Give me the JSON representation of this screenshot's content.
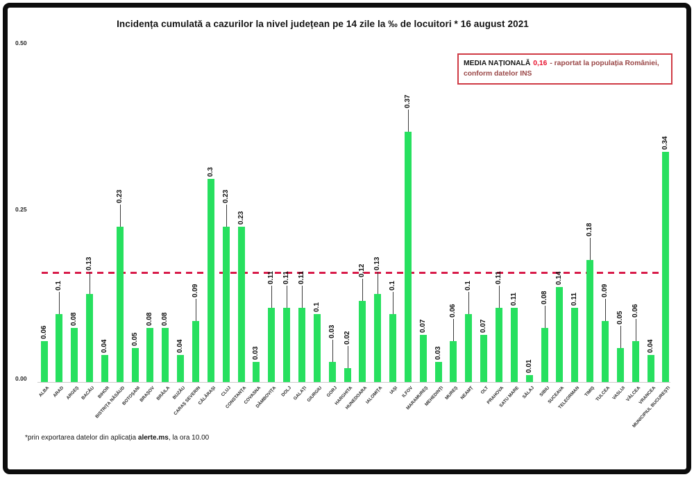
{
  "title": "Incidența cumulată a cazurilor la nivel județean pe 14 zile la ‰ de locuitori *  16 august 2021",
  "annotation_box": {
    "label": "MEDIA NAȚIONALĂ",
    "value": "0,16",
    "rest_line1": "- raportat la populația României,",
    "line2": "conform datelor INS"
  },
  "footnote": {
    "pre": "*prin exportarea datelor din aplicația ",
    "bold": "alerte.ms",
    "post": ", la ora 10.00"
  },
  "chart_data": {
    "type": "bar",
    "title": "Incidența cumulată a cazurilor la nivel județean pe 14 zile la ‰ de locuitori *  16 august 2021",
    "xlabel": "",
    "ylabel": "",
    "ylim": [
      0,
      0.5
    ],
    "ytick_labels": [
      "0.50",
      "0.25",
      "0.00"
    ],
    "ytick_values": [
      0.5,
      0.25,
      0.0
    ],
    "grid": false,
    "legend": false,
    "bar_color": "#27e05f",
    "avg_line_color": "#d81b4a",
    "national_average": 0.16,
    "national_average_label": "0,16",
    "categories": [
      "ALBA",
      "ARAD",
      "ARGEȘ",
      "BACĂU",
      "BIHOR",
      "BISTRIȚA NĂSĂUD",
      "BOTOȘANI",
      "BRAȘOV",
      "BRĂILA",
      "BUZĂU",
      "CARAȘ SEVERIN",
      "CĂLĂRAȘI",
      "CLUJ",
      "CONSTANȚA",
      "COVASNA",
      "DÂMBOVIȚA",
      "DOLJ",
      "GALAȚI",
      "GIURGIU",
      "GORJ",
      "HARGHITA",
      "HUNEDOARA",
      "IALOMIȚA",
      "IAȘI",
      "ILFOV",
      "MARAMUREȘ",
      "MEHEDINȚI",
      "MUREȘ",
      "NEAMȚ",
      "OLT",
      "PRAHOVA",
      "SATU MARE",
      "SĂLAJ",
      "SIBIU",
      "SUCEAVA",
      "TELEORMAN",
      "TIMIȘ",
      "TULCEA",
      "VASLUI",
      "VÂLCEA",
      "VRANCEA",
      "MUNICIPIUL BUCUREȘTI"
    ],
    "values": [
      0.06,
      0.1,
      0.08,
      0.13,
      0.04,
      0.23,
      0.05,
      0.08,
      0.08,
      0.04,
      0.09,
      0.3,
      0.23,
      0.23,
      0.03,
      0.11,
      0.11,
      0.11,
      0.1,
      0.03,
      0.02,
      0.12,
      0.13,
      0.1,
      0.37,
      0.07,
      0.03,
      0.06,
      0.1,
      0.07,
      0.11,
      0.11,
      0.01,
      0.08,
      0.14,
      0.11,
      0.18,
      0.09,
      0.05,
      0.06,
      0.04,
      0.34
    ],
    "value_labels": [
      "0.06",
      "0.1",
      "0.08",
      "0.13",
      "0.04",
      "0.23",
      "0.05",
      "0.08",
      "0.08",
      "0.04",
      "0.09",
      "0.3",
      "0.23",
      "0.23",
      "0.03",
      "0.11",
      "0.11",
      "0.11",
      "0.1",
      "0.03",
      "0.02",
      "0.12",
      "0.13",
      "0.1",
      "0.37",
      "0.07",
      "0.03",
      "0.06",
      "0.1",
      "0.07",
      "0.11",
      "0.11",
      "0.01",
      "0.08",
      "0.14",
      "0.11",
      "0.18",
      "0.09",
      "0.05",
      "0.06",
      "0.04",
      "0.34"
    ],
    "label_callout_line": [
      false,
      true,
      false,
      true,
      false,
      true,
      false,
      false,
      false,
      false,
      true,
      false,
      true,
      false,
      false,
      true,
      true,
      true,
      false,
      true,
      true,
      true,
      true,
      true,
      true,
      false,
      false,
      true,
      true,
      false,
      true,
      false,
      false,
      true,
      false,
      false,
      true,
      true,
      true,
      true,
      false,
      false
    ]
  }
}
